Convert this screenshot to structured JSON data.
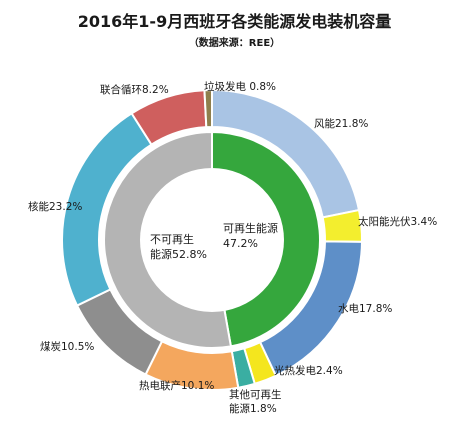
{
  "title": "2016年1-9月西班牙各类能源发电装机容量",
  "subtitle": "（数据来源：REE）",
  "chart_data": {
    "type": "pie",
    "variant": "double-ring",
    "outer_ring": [
      {
        "label": "风能21.8%",
        "value": 21.8,
        "color": "#a9c4e4"
      },
      {
        "label": "太阳能光伏3.4%",
        "value": 3.4,
        "color": "#f3ee2e"
      },
      {
        "label": "水电17.8%",
        "value": 17.8,
        "color": "#5e8fc8"
      },
      {
        "label": "光热发电2.4%",
        "value": 2.4,
        "color": "#f4e61e"
      },
      {
        "label": "其他可再生能源1.8%",
        "value": 1.8,
        "color": "#3aaea2"
      },
      {
        "label": "热电联产10.1%",
        "value": 10.1,
        "color": "#f4a75e"
      },
      {
        "label": "煤炭10.5%",
        "value": 10.5,
        "color": "#8e8e8e"
      },
      {
        "label": "核能23.2%",
        "value": 23.2,
        "color": "#4fb1ce"
      },
      {
        "label": "联合循环8.2%",
        "value": 8.2,
        "color": "#cf5f5e"
      },
      {
        "label": "垃圾发电 0.8%",
        "value": 0.8,
        "color": "#8f7f4d"
      }
    ],
    "inner_ring": [
      {
        "label": "可再生能源47.2%",
        "value": 47.2,
        "color": "#35a73d"
      },
      {
        "label": "不可再生能源52.8%",
        "value": 52.8,
        "color": "#b4b4b4"
      }
    ]
  }
}
